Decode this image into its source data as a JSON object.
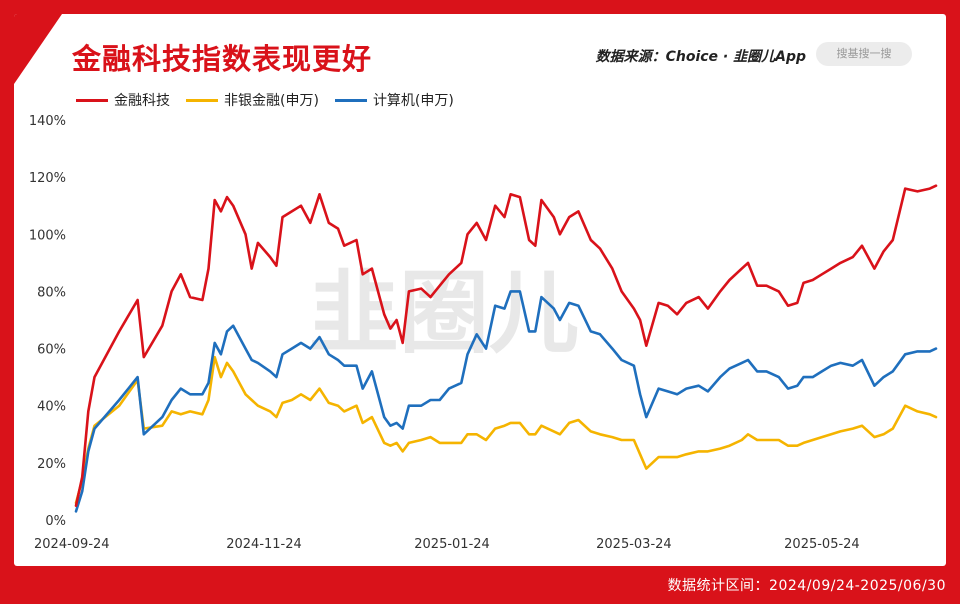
{
  "header": {
    "title": "金融科技指数表现更好",
    "source": "数据来源：Choice · 韭圈儿App",
    "search_placeholder": "搜基搜一搜"
  },
  "footer": {
    "range_text": "数据统计区间：2024/09/24-2025/06/30"
  },
  "watermark": "韭圈儿",
  "colors": {
    "fintech": "#d9121a",
    "nonbank": "#f5b400",
    "computer": "#1f6fbd",
    "accent": "#d9121a"
  },
  "chart_data": {
    "type": "line",
    "title": "金融科技指数表现更好",
    "xlabel": "",
    "ylabel": "",
    "ylim": [
      0,
      140
    ],
    "y_ticks": [
      "0%",
      "20%",
      "40%",
      "60%",
      "80%",
      "100%",
      "120%",
      "140%"
    ],
    "x_range": [
      "2024-09-24",
      "2025-06-30"
    ],
    "x_ticks": [
      "2024-09-24",
      "2024-11-24",
      "2025-01-24",
      "2025-03-24",
      "2025-05-24"
    ],
    "grid": false,
    "legend_position": "top-left",
    "series": [
      {
        "name": "金融科技",
        "color": "#d9121a",
        "points": [
          [
            "2024-09-24",
            5
          ],
          [
            "2024-09-26",
            15
          ],
          [
            "2024-09-28",
            38
          ],
          [
            "2024-09-30",
            50
          ],
          [
            "2024-10-08",
            66
          ],
          [
            "2024-10-14",
            77
          ],
          [
            "2024-10-16",
            57
          ],
          [
            "2024-10-22",
            68
          ],
          [
            "2024-10-25",
            80
          ],
          [
            "2024-10-28",
            86
          ],
          [
            "2024-10-31",
            78
          ],
          [
            "2024-11-04",
            77
          ],
          [
            "2024-11-06",
            88
          ],
          [
            "2024-11-08",
            112
          ],
          [
            "2024-11-10",
            108
          ],
          [
            "2024-11-12",
            113
          ],
          [
            "2024-11-14",
            110
          ],
          [
            "2024-11-18",
            100
          ],
          [
            "2024-11-20",
            88
          ],
          [
            "2024-11-22",
            97
          ],
          [
            "2024-11-26",
            92
          ],
          [
            "2024-11-28",
            89
          ],
          [
            "2024-11-30",
            106
          ],
          [
            "2024-12-03",
            108
          ],
          [
            "2024-12-06",
            110
          ],
          [
            "2024-12-09",
            104
          ],
          [
            "2024-12-12",
            114
          ],
          [
            "2024-12-15",
            104
          ],
          [
            "2024-12-18",
            102
          ],
          [
            "2024-12-20",
            96
          ],
          [
            "2024-12-24",
            98
          ],
          [
            "2024-12-26",
            86
          ],
          [
            "2024-12-29",
            88
          ],
          [
            "2025-01-02",
            72
          ],
          [
            "2025-01-04",
            67
          ],
          [
            "2025-01-06",
            70
          ],
          [
            "2025-01-08",
            62
          ],
          [
            "2025-01-10",
            80
          ],
          [
            "2025-01-14",
            81
          ],
          [
            "2025-01-17",
            78
          ],
          [
            "2025-01-20",
            82
          ],
          [
            "2025-01-23",
            86
          ],
          [
            "2025-01-27",
            90
          ],
          [
            "2025-01-29",
            100
          ],
          [
            "2025-02-01",
            104
          ],
          [
            "2025-02-04",
            98
          ],
          [
            "2025-02-07",
            110
          ],
          [
            "2025-02-10",
            106
          ],
          [
            "2025-02-12",
            114
          ],
          [
            "2025-02-15",
            113
          ],
          [
            "2025-02-18",
            98
          ],
          [
            "2025-02-20",
            96
          ],
          [
            "2025-02-22",
            112
          ],
          [
            "2025-02-26",
            106
          ],
          [
            "2025-02-28",
            100
          ],
          [
            "2025-03-03",
            106
          ],
          [
            "2025-03-06",
            108
          ],
          [
            "2025-03-10",
            98
          ],
          [
            "2025-03-13",
            95
          ],
          [
            "2025-03-17",
            88
          ],
          [
            "2025-03-20",
            80
          ],
          [
            "2025-03-24",
            74
          ],
          [
            "2025-03-26",
            70
          ],
          [
            "2025-03-28",
            61
          ],
          [
            "2025-04-01",
            76
          ],
          [
            "2025-04-04",
            75
          ],
          [
            "2025-04-07",
            72
          ],
          [
            "2025-04-10",
            76
          ],
          [
            "2025-04-14",
            78
          ],
          [
            "2025-04-17",
            74
          ],
          [
            "2025-04-21",
            80
          ],
          [
            "2025-04-24",
            84
          ],
          [
            "2025-04-28",
            88
          ],
          [
            "2025-04-30",
            90
          ],
          [
            "2025-05-03",
            82
          ],
          [
            "2025-05-06",
            82
          ],
          [
            "2025-05-10",
            80
          ],
          [
            "2025-05-13",
            75
          ],
          [
            "2025-05-16",
            76
          ],
          [
            "2025-05-18",
            83
          ],
          [
            "2025-05-21",
            84
          ],
          [
            "2025-05-24",
            86
          ],
          [
            "2025-05-27",
            88
          ],
          [
            "2025-05-30",
            90
          ],
          [
            "2025-06-03",
            92
          ],
          [
            "2025-06-06",
            96
          ],
          [
            "2025-06-10",
            88
          ],
          [
            "2025-06-13",
            94
          ],
          [
            "2025-06-16",
            98
          ],
          [
            "2025-06-20",
            116
          ],
          [
            "2025-06-24",
            115
          ],
          [
            "2025-06-28",
            116
          ],
          [
            "2025-06-30",
            117
          ]
        ]
      },
      {
        "name": "非银金融(申万)",
        "color": "#f5b400",
        "points": [
          [
            "2024-09-24",
            6
          ],
          [
            "2024-09-26",
            14
          ],
          [
            "2024-09-28",
            25
          ],
          [
            "2024-09-30",
            33
          ],
          [
            "2024-10-08",
            40
          ],
          [
            "2024-10-14",
            49
          ],
          [
            "2024-10-16",
            32
          ],
          [
            "2024-10-22",
            33
          ],
          [
            "2024-10-25",
            38
          ],
          [
            "2024-10-28",
            37
          ],
          [
            "2024-10-31",
            38
          ],
          [
            "2024-11-04",
            37
          ],
          [
            "2024-11-06",
            42
          ],
          [
            "2024-11-08",
            57
          ],
          [
            "2024-11-10",
            50
          ],
          [
            "2024-11-12",
            55
          ],
          [
            "2024-11-14",
            52
          ],
          [
            "2024-11-18",
            44
          ],
          [
            "2024-11-20",
            42
          ],
          [
            "2024-11-22",
            40
          ],
          [
            "2024-11-26",
            38
          ],
          [
            "2024-11-28",
            36
          ],
          [
            "2024-11-30",
            41
          ],
          [
            "2024-12-03",
            42
          ],
          [
            "2024-12-06",
            44
          ],
          [
            "2024-12-09",
            42
          ],
          [
            "2024-12-12",
            46
          ],
          [
            "2024-12-15",
            41
          ],
          [
            "2024-12-18",
            40
          ],
          [
            "2024-12-20",
            38
          ],
          [
            "2024-12-24",
            40
          ],
          [
            "2024-12-26",
            34
          ],
          [
            "2024-12-29",
            36
          ],
          [
            "2025-01-02",
            27
          ],
          [
            "2025-01-04",
            26
          ],
          [
            "2025-01-06",
            27
          ],
          [
            "2025-01-08",
            24
          ],
          [
            "2025-01-10",
            27
          ],
          [
            "2025-01-14",
            28
          ],
          [
            "2025-01-17",
            29
          ],
          [
            "2025-01-20",
            27
          ],
          [
            "2025-01-23",
            27
          ],
          [
            "2025-01-27",
            27
          ],
          [
            "2025-01-29",
            30
          ],
          [
            "2025-02-01",
            30
          ],
          [
            "2025-02-04",
            28
          ],
          [
            "2025-02-07",
            32
          ],
          [
            "2025-02-10",
            33
          ],
          [
            "2025-02-12",
            34
          ],
          [
            "2025-02-15",
            34
          ],
          [
            "2025-02-18",
            30
          ],
          [
            "2025-02-20",
            30
          ],
          [
            "2025-02-22",
            33
          ],
          [
            "2025-02-26",
            31
          ],
          [
            "2025-02-28",
            30
          ],
          [
            "2025-03-03",
            34
          ],
          [
            "2025-03-06",
            35
          ],
          [
            "2025-03-10",
            31
          ],
          [
            "2025-03-13",
            30
          ],
          [
            "2025-03-17",
            29
          ],
          [
            "2025-03-20",
            28
          ],
          [
            "2025-03-24",
            28
          ],
          [
            "2025-03-26",
            23
          ],
          [
            "2025-03-28",
            18
          ],
          [
            "2025-04-01",
            22
          ],
          [
            "2025-04-04",
            22
          ],
          [
            "2025-04-07",
            22
          ],
          [
            "2025-04-10",
            23
          ],
          [
            "2025-04-14",
            24
          ],
          [
            "2025-04-17",
            24
          ],
          [
            "2025-04-21",
            25
          ],
          [
            "2025-04-24",
            26
          ],
          [
            "2025-04-28",
            28
          ],
          [
            "2025-04-30",
            30
          ],
          [
            "2025-05-03",
            28
          ],
          [
            "2025-05-06",
            28
          ],
          [
            "2025-05-10",
            28
          ],
          [
            "2025-05-13",
            26
          ],
          [
            "2025-05-16",
            26
          ],
          [
            "2025-05-18",
            27
          ],
          [
            "2025-05-21",
            28
          ],
          [
            "2025-05-24",
            29
          ],
          [
            "2025-05-27",
            30
          ],
          [
            "2025-05-30",
            31
          ],
          [
            "2025-06-03",
            32
          ],
          [
            "2025-06-06",
            33
          ],
          [
            "2025-06-10",
            29
          ],
          [
            "2025-06-13",
            30
          ],
          [
            "2025-06-16",
            32
          ],
          [
            "2025-06-20",
            40
          ],
          [
            "2025-06-24",
            38
          ],
          [
            "2025-06-28",
            37
          ],
          [
            "2025-06-30",
            36
          ]
        ]
      },
      {
        "name": "计算机(申万)",
        "color": "#1f6fbd",
        "points": [
          [
            "2024-09-24",
            3
          ],
          [
            "2024-09-26",
            10
          ],
          [
            "2024-09-28",
            24
          ],
          [
            "2024-09-30",
            32
          ],
          [
            "2024-10-08",
            42
          ],
          [
            "2024-10-14",
            50
          ],
          [
            "2024-10-16",
            30
          ],
          [
            "2024-10-22",
            36
          ],
          [
            "2024-10-25",
            42
          ],
          [
            "2024-10-28",
            46
          ],
          [
            "2024-10-31",
            44
          ],
          [
            "2024-11-04",
            44
          ],
          [
            "2024-11-06",
            48
          ],
          [
            "2024-11-08",
            62
          ],
          [
            "2024-11-10",
            58
          ],
          [
            "2024-11-12",
            66
          ],
          [
            "2024-11-14",
            68
          ],
          [
            "2024-11-18",
            60
          ],
          [
            "2024-11-20",
            56
          ],
          [
            "2024-11-22",
            55
          ],
          [
            "2024-11-26",
            52
          ],
          [
            "2024-11-28",
            50
          ],
          [
            "2024-11-30",
            58
          ],
          [
            "2024-12-03",
            60
          ],
          [
            "2024-12-06",
            62
          ],
          [
            "2024-12-09",
            60
          ],
          [
            "2024-12-12",
            64
          ],
          [
            "2024-12-15",
            58
          ],
          [
            "2024-12-18",
            56
          ],
          [
            "2024-12-20",
            54
          ],
          [
            "2024-12-24",
            54
          ],
          [
            "2024-12-26",
            46
          ],
          [
            "2024-12-29",
            52
          ],
          [
            "2025-01-02",
            36
          ],
          [
            "2025-01-04",
            33
          ],
          [
            "2025-01-06",
            34
          ],
          [
            "2025-01-08",
            32
          ],
          [
            "2025-01-10",
            40
          ],
          [
            "2025-01-14",
            40
          ],
          [
            "2025-01-17",
            42
          ],
          [
            "2025-01-20",
            42
          ],
          [
            "2025-01-23",
            46
          ],
          [
            "2025-01-27",
            48
          ],
          [
            "2025-01-29",
            58
          ],
          [
            "2025-02-01",
            65
          ],
          [
            "2025-02-04",
            60
          ],
          [
            "2025-02-07",
            75
          ],
          [
            "2025-02-10",
            74
          ],
          [
            "2025-02-12",
            80
          ],
          [
            "2025-02-15",
            80
          ],
          [
            "2025-02-18",
            66
          ],
          [
            "2025-02-20",
            66
          ],
          [
            "2025-02-22",
            78
          ],
          [
            "2025-02-26",
            74
          ],
          [
            "2025-02-28",
            70
          ],
          [
            "2025-03-03",
            76
          ],
          [
            "2025-03-06",
            75
          ],
          [
            "2025-03-10",
            66
          ],
          [
            "2025-03-13",
            65
          ],
          [
            "2025-03-17",
            60
          ],
          [
            "2025-03-20",
            56
          ],
          [
            "2025-03-24",
            54
          ],
          [
            "2025-03-26",
            44
          ],
          [
            "2025-03-28",
            36
          ],
          [
            "2025-04-01",
            46
          ],
          [
            "2025-04-04",
            45
          ],
          [
            "2025-04-07",
            44
          ],
          [
            "2025-04-10",
            46
          ],
          [
            "2025-04-14",
            47
          ],
          [
            "2025-04-17",
            45
          ],
          [
            "2025-04-21",
            50
          ],
          [
            "2025-04-24",
            53
          ],
          [
            "2025-04-28",
            55
          ],
          [
            "2025-04-30",
            56
          ],
          [
            "2025-05-03",
            52
          ],
          [
            "2025-05-06",
            52
          ],
          [
            "2025-05-10",
            50
          ],
          [
            "2025-05-13",
            46
          ],
          [
            "2025-05-16",
            47
          ],
          [
            "2025-05-18",
            50
          ],
          [
            "2025-05-21",
            50
          ],
          [
            "2025-05-24",
            52
          ],
          [
            "2025-05-27",
            54
          ],
          [
            "2025-05-30",
            55
          ],
          [
            "2025-06-03",
            54
          ],
          [
            "2025-06-06",
            56
          ],
          [
            "2025-06-10",
            47
          ],
          [
            "2025-06-13",
            50
          ],
          [
            "2025-06-16",
            52
          ],
          [
            "2025-06-20",
            58
          ],
          [
            "2025-06-24",
            59
          ],
          [
            "2025-06-28",
            59
          ],
          [
            "2025-06-30",
            60
          ]
        ]
      }
    ]
  }
}
